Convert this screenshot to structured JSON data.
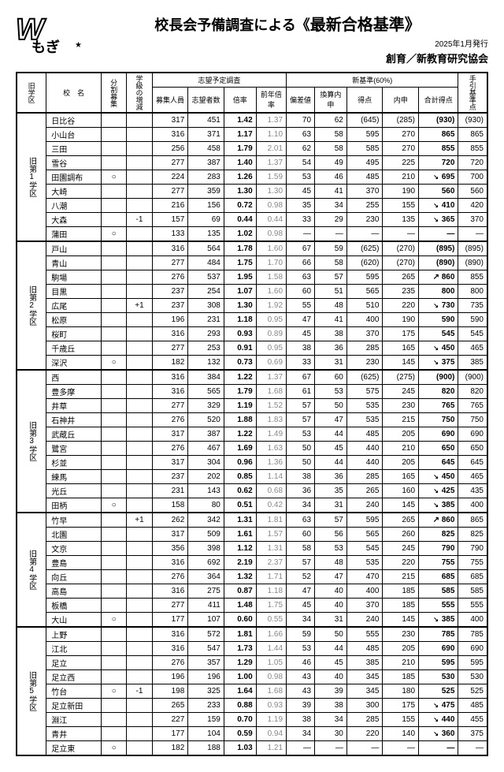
{
  "header": {
    "logo_text": "もぎ",
    "title_prefix": "校長会予備調査による《",
    "title_main": "最新合格基準》",
    "date": "2025年1月発行",
    "publisher": "創育／新教育研究協会"
  },
  "columns": {
    "district": "旧学区",
    "school": "校　名",
    "split": "分割募集",
    "enroll_change": "学級の増減",
    "survey_group": "志望予定調査",
    "recruit": "募集人員",
    "applicants": "志望者数",
    "ratio": "倍率",
    "prev_ratio": "前年倍率",
    "standard_group": "新基準(60%)",
    "deviation": "偏差値",
    "converted": "換算内申",
    "score": "得点",
    "internal": "内申",
    "total": "合計得点",
    "ref": "手引基準点"
  },
  "districts": [
    {
      "label": "旧第1学区",
      "rows": [
        {
          "n": "日比谷",
          "m": "",
          "c": "",
          "r": 317,
          "a": 451,
          "rt": "1.42",
          "pr": "1.37",
          "d": 70,
          "cv": 62,
          "sc": "(645)",
          "ip": "(285)",
          "tp": "(930)",
          "rf": "(930)"
        },
        {
          "n": "小山台",
          "m": "",
          "c": "",
          "r": 316,
          "a": 371,
          "rt": "1.17",
          "pr": "1.10",
          "d": 63,
          "cv": 58,
          "sc": 595,
          "ip": 270,
          "tp": "865",
          "rf": 865
        },
        {
          "n": "三田",
          "m": "",
          "c": "",
          "r": 256,
          "a": 458,
          "rt": "1.79",
          "pr": "2.01",
          "d": 62,
          "cv": 58,
          "sc": 585,
          "ip": 270,
          "tp": "855",
          "rf": 855
        },
        {
          "n": "雪谷",
          "m": "",
          "c": "",
          "r": 277,
          "a": 387,
          "rt": "1.40",
          "pr": "1.37",
          "d": 54,
          "cv": 49,
          "sc": 495,
          "ip": 225,
          "tp": "720",
          "rf": 720
        },
        {
          "n": "田園調布",
          "m": "○",
          "c": "",
          "r": 224,
          "a": 283,
          "rt": "1.26",
          "pr": "1.59",
          "d": 53,
          "cv": 46,
          "sc": 485,
          "ip": 210,
          "tp": "695",
          "rf": 700,
          "dec": true
        },
        {
          "n": "大崎",
          "m": "",
          "c": "",
          "r": 277,
          "a": 359,
          "rt": "1.30",
          "pr": "1.30",
          "d": 45,
          "cv": 41,
          "sc": 370,
          "ip": 190,
          "tp": "560",
          "rf": 560
        },
        {
          "n": "八潮",
          "m": "",
          "c": "",
          "r": 216,
          "a": 156,
          "rt": "0.72",
          "pr": "0.98",
          "d": 35,
          "cv": 34,
          "sc": 255,
          "ip": 155,
          "tp": "410",
          "rf": 420,
          "dec": true
        },
        {
          "n": "大森",
          "m": "",
          "c": "-1",
          "r": 157,
          "a": 69,
          "rt": "0.44",
          "pr": "0.44",
          "d": 33,
          "cv": 29,
          "sc": 230,
          "ip": 135,
          "tp": "365",
          "rf": 370,
          "dec": true
        },
        {
          "n": "蒲田",
          "m": "○",
          "c": "",
          "r": 133,
          "a": 135,
          "rt": "1.02",
          "pr": "0.98",
          "d": "—",
          "cv": "—",
          "sc": "—",
          "ip": "—",
          "tp": "—",
          "rf": "—"
        }
      ]
    },
    {
      "label": "旧第2学区",
      "rows": [
        {
          "n": "戸山",
          "m": "",
          "c": "",
          "r": 316,
          "a": 564,
          "rt": "1.78",
          "pr": "1.60",
          "d": 67,
          "cv": 59,
          "sc": "(625)",
          "ip": "(270)",
          "tp": "(895)",
          "rf": "(895)"
        },
        {
          "n": "青山",
          "m": "",
          "c": "",
          "r": 277,
          "a": 484,
          "rt": "1.75",
          "pr": "1.70",
          "d": 66,
          "cv": 58,
          "sc": "(620)",
          "ip": "(270)",
          "tp": "(890)",
          "rf": "(890)"
        },
        {
          "n": "駒場",
          "m": "",
          "c": "",
          "r": 276,
          "a": 537,
          "rt": "1.95",
          "pr": "1.58",
          "d": 63,
          "cv": 57,
          "sc": 595,
          "ip": 265,
          "tp": "860",
          "rf": "855",
          "dif": "↗"
        },
        {
          "n": "目黒",
          "m": "",
          "c": "",
          "r": 237,
          "a": 254,
          "rt": "1.07",
          "pr": "1.60",
          "d": 60,
          "cv": 51,
          "sc": 565,
          "ip": 235,
          "tp": "800",
          "rf": 800
        },
        {
          "n": "広尾",
          "m": "",
          "c": "+1",
          "r": 237,
          "a": 308,
          "rt": "1.30",
          "pr": "1.92",
          "d": 55,
          "cv": 48,
          "sc": 510,
          "ip": 220,
          "tp": "730",
          "rf": 735,
          "dec": true
        },
        {
          "n": "松原",
          "m": "",
          "c": "",
          "r": 196,
          "a": 231,
          "rt": "1.18",
          "pr": "0.95",
          "d": 47,
          "cv": 41,
          "sc": 400,
          "ip": 190,
          "tp": "590",
          "rf": 590
        },
        {
          "n": "桜町",
          "m": "",
          "c": "",
          "r": 316,
          "a": 293,
          "rt": "0.93",
          "pr": "0.89",
          "d": 45,
          "cv": 38,
          "sc": 370,
          "ip": 175,
          "tp": "545",
          "rf": 545
        },
        {
          "n": "千歳丘",
          "m": "",
          "c": "",
          "r": 277,
          "a": 253,
          "rt": "0.91",
          "pr": "0.95",
          "d": 38,
          "cv": 36,
          "sc": 285,
          "ip": 165,
          "tp": "450",
          "rf": 465,
          "dec": true
        },
        {
          "n": "深沢",
          "m": "○",
          "c": "",
          "r": 182,
          "a": 132,
          "rt": "0.73",
          "pr": "0.69",
          "d": 33,
          "cv": 31,
          "sc": 230,
          "ip": 145,
          "tp": "375",
          "rf": 385,
          "dec": true
        }
      ]
    },
    {
      "label": "旧第3学区",
      "rows": [
        {
          "n": "西",
          "m": "",
          "c": "",
          "r": 316,
          "a": 384,
          "rt": "1.22",
          "pr": "1.37",
          "d": 67,
          "cv": 60,
          "sc": "(625)",
          "ip": "(275)",
          "tp": "(900)",
          "rf": "(900)"
        },
        {
          "n": "豊多摩",
          "m": "",
          "c": "",
          "r": 316,
          "a": 565,
          "rt": "1.79",
          "pr": "1.68",
          "d": 61,
          "cv": 53,
          "sc": 575,
          "ip": 245,
          "tp": "820",
          "rf": 820
        },
        {
          "n": "井草",
          "m": "",
          "c": "",
          "r": 277,
          "a": 329,
          "rt": "1.19",
          "pr": "1.52",
          "d": 57,
          "cv": 50,
          "sc": 535,
          "ip": 230,
          "tp": "765",
          "rf": 765
        },
        {
          "n": "石神井",
          "m": "",
          "c": "",
          "r": 276,
          "a": 520,
          "rt": "1.88",
          "pr": "1.83",
          "d": 57,
          "cv": 47,
          "sc": 535,
          "ip": 215,
          "tp": "750",
          "rf": 750
        },
        {
          "n": "武蔵丘",
          "m": "",
          "c": "",
          "r": 317,
          "a": 387,
          "rt": "1.22",
          "pr": "1.49",
          "d": 53,
          "cv": 44,
          "sc": 485,
          "ip": 205,
          "tp": "690",
          "rf": 690
        },
        {
          "n": "鷺宮",
          "m": "",
          "c": "",
          "r": 276,
          "a": 467,
          "rt": "1.69",
          "pr": "1.63",
          "d": 50,
          "cv": 45,
          "sc": 440,
          "ip": 210,
          "tp": "650",
          "rf": 650
        },
        {
          "n": "杉並",
          "m": "",
          "c": "",
          "r": 317,
          "a": 304,
          "rt": "0.96",
          "pr": "1.36",
          "d": 50,
          "cv": 44,
          "sc": 440,
          "ip": 205,
          "tp": "645",
          "rf": 645
        },
        {
          "n": "練馬",
          "m": "",
          "c": "",
          "r": 237,
          "a": 202,
          "rt": "0.85",
          "pr": "1.14",
          "d": 38,
          "cv": 36,
          "sc": 285,
          "ip": 165,
          "tp": "450",
          "rf": 465,
          "dec": true
        },
        {
          "n": "光丘",
          "m": "",
          "c": "",
          "r": 231,
          "a": 143,
          "rt": "0.62",
          "pr": "0.68",
          "d": 36,
          "cv": 35,
          "sc": 265,
          "ip": 160,
          "tp": "425",
          "rf": 435,
          "dec": true
        },
        {
          "n": "田柄",
          "m": "○",
          "c": "",
          "r": 158,
          "a": 80,
          "rt": "0.51",
          "pr": "0.42",
          "d": 34,
          "cv": 31,
          "sc": 240,
          "ip": 145,
          "tp": "385",
          "rf": 400,
          "dec": true
        }
      ]
    },
    {
      "label": "旧第4学区",
      "rows": [
        {
          "n": "竹早",
          "m": "",
          "c": "+1",
          "r": 262,
          "a": 342,
          "rt": "1.31",
          "pr": "1.81",
          "d": 63,
          "cv": 57,
          "sc": 595,
          "ip": 265,
          "tp": "860",
          "rf": 865,
          "dif": "↗"
        },
        {
          "n": "北園",
          "m": "",
          "c": "",
          "r": 317,
          "a": 509,
          "rt": "1.61",
          "pr": "1.57",
          "d": 60,
          "cv": 56,
          "sc": 565,
          "ip": 260,
          "tp": "825",
          "rf": 825
        },
        {
          "n": "文京",
          "m": "",
          "c": "",
          "r": 356,
          "a": 398,
          "rt": "1.12",
          "pr": "1.31",
          "d": 58,
          "cv": 53,
          "sc": 545,
          "ip": 245,
          "tp": "790",
          "rf": 790
        },
        {
          "n": "豊島",
          "m": "",
          "c": "",
          "r": 316,
          "a": 692,
          "rt": "2.19",
          "pr": "2.37",
          "d": 57,
          "cv": 48,
          "sc": 535,
          "ip": 220,
          "tp": "755",
          "rf": 755
        },
        {
          "n": "向丘",
          "m": "",
          "c": "",
          "r": 276,
          "a": 364,
          "rt": "1.32",
          "pr": "1.71",
          "d": 52,
          "cv": 47,
          "sc": 470,
          "ip": 215,
          "tp": "685",
          "rf": 685
        },
        {
          "n": "高島",
          "m": "",
          "c": "",
          "r": 316,
          "a": 275,
          "rt": "0.87",
          "pr": "1.18",
          "d": 47,
          "cv": 40,
          "sc": 400,
          "ip": 185,
          "tp": "585",
          "rf": 585
        },
        {
          "n": "板橋",
          "m": "",
          "c": "",
          "r": 277,
          "a": 411,
          "rt": "1.48",
          "pr": "1.75",
          "d": 45,
          "cv": 40,
          "sc": 370,
          "ip": 185,
          "tp": "555",
          "rf": 555
        },
        {
          "n": "大山",
          "m": "○",
          "c": "",
          "r": 177,
          "a": 107,
          "rt": "0.60",
          "pr": "0.55",
          "d": 34,
          "cv": 31,
          "sc": 240,
          "ip": 145,
          "tp": "385",
          "rf": 400,
          "dec": true
        }
      ]
    },
    {
      "label": "旧第5学区",
      "rows": [
        {
          "n": "上野",
          "m": "",
          "c": "",
          "r": 316,
          "a": 572,
          "rt": "1.81",
          "pr": "1.66",
          "d": 59,
          "cv": 50,
          "sc": 555,
          "ip": 230,
          "tp": "785",
          "rf": 785
        },
        {
          "n": "江北",
          "m": "",
          "c": "",
          "r": 316,
          "a": 547,
          "rt": "1.73",
          "pr": "1.44",
          "d": 53,
          "cv": 44,
          "sc": 485,
          "ip": 205,
          "tp": "690",
          "rf": 690
        },
        {
          "n": "足立",
          "m": "",
          "c": "",
          "r": 276,
          "a": 357,
          "rt": "1.29",
          "pr": "1.05",
          "d": 46,
          "cv": 45,
          "sc": 385,
          "ip": 210,
          "tp": "595",
          "rf": 595
        },
        {
          "n": "足立西",
          "m": "",
          "c": "",
          "r": 196,
          "a": 196,
          "rt": "1.00",
          "pr": "0.98",
          "d": 43,
          "cv": 40,
          "sc": 345,
          "ip": 185,
          "tp": "530",
          "rf": 530
        },
        {
          "n": "竹台",
          "m": "○",
          "c": "-1",
          "r": 198,
          "a": 325,
          "rt": "1.64",
          "pr": "1.68",
          "d": 43,
          "cv": 39,
          "sc": 345,
          "ip": 180,
          "tp": "525",
          "rf": 525
        },
        {
          "n": "足立新田",
          "m": "",
          "c": "",
          "r": 265,
          "a": 233,
          "rt": "0.88",
          "pr": "0.93",
          "d": 39,
          "cv": 38,
          "sc": 300,
          "ip": 175,
          "tp": "475",
          "rf": 485,
          "dec": true
        },
        {
          "n": "淵江",
          "m": "",
          "c": "",
          "r": 227,
          "a": 159,
          "rt": "0.70",
          "pr": "1.19",
          "d": 38,
          "cv": 34,
          "sc": 285,
          "ip": 155,
          "tp": "440",
          "rf": 455,
          "dec": true
        },
        {
          "n": "青井",
          "m": "",
          "c": "",
          "r": 177,
          "a": 104,
          "rt": "0.59",
          "pr": "0.94",
          "d": 34,
          "cv": 30,
          "sc": 220,
          "ip": 140,
          "tp": "360",
          "rf": 375,
          "dec": true
        },
        {
          "n": "足立東",
          "m": "○",
          "c": "",
          "r": 182,
          "a": 188,
          "rt": "1.03",
          "pr": "1.21",
          "d": "—",
          "cv": "—",
          "sc": "—",
          "ip": "—",
          "tp": "—",
          "rf": "—"
        }
      ]
    }
  ]
}
